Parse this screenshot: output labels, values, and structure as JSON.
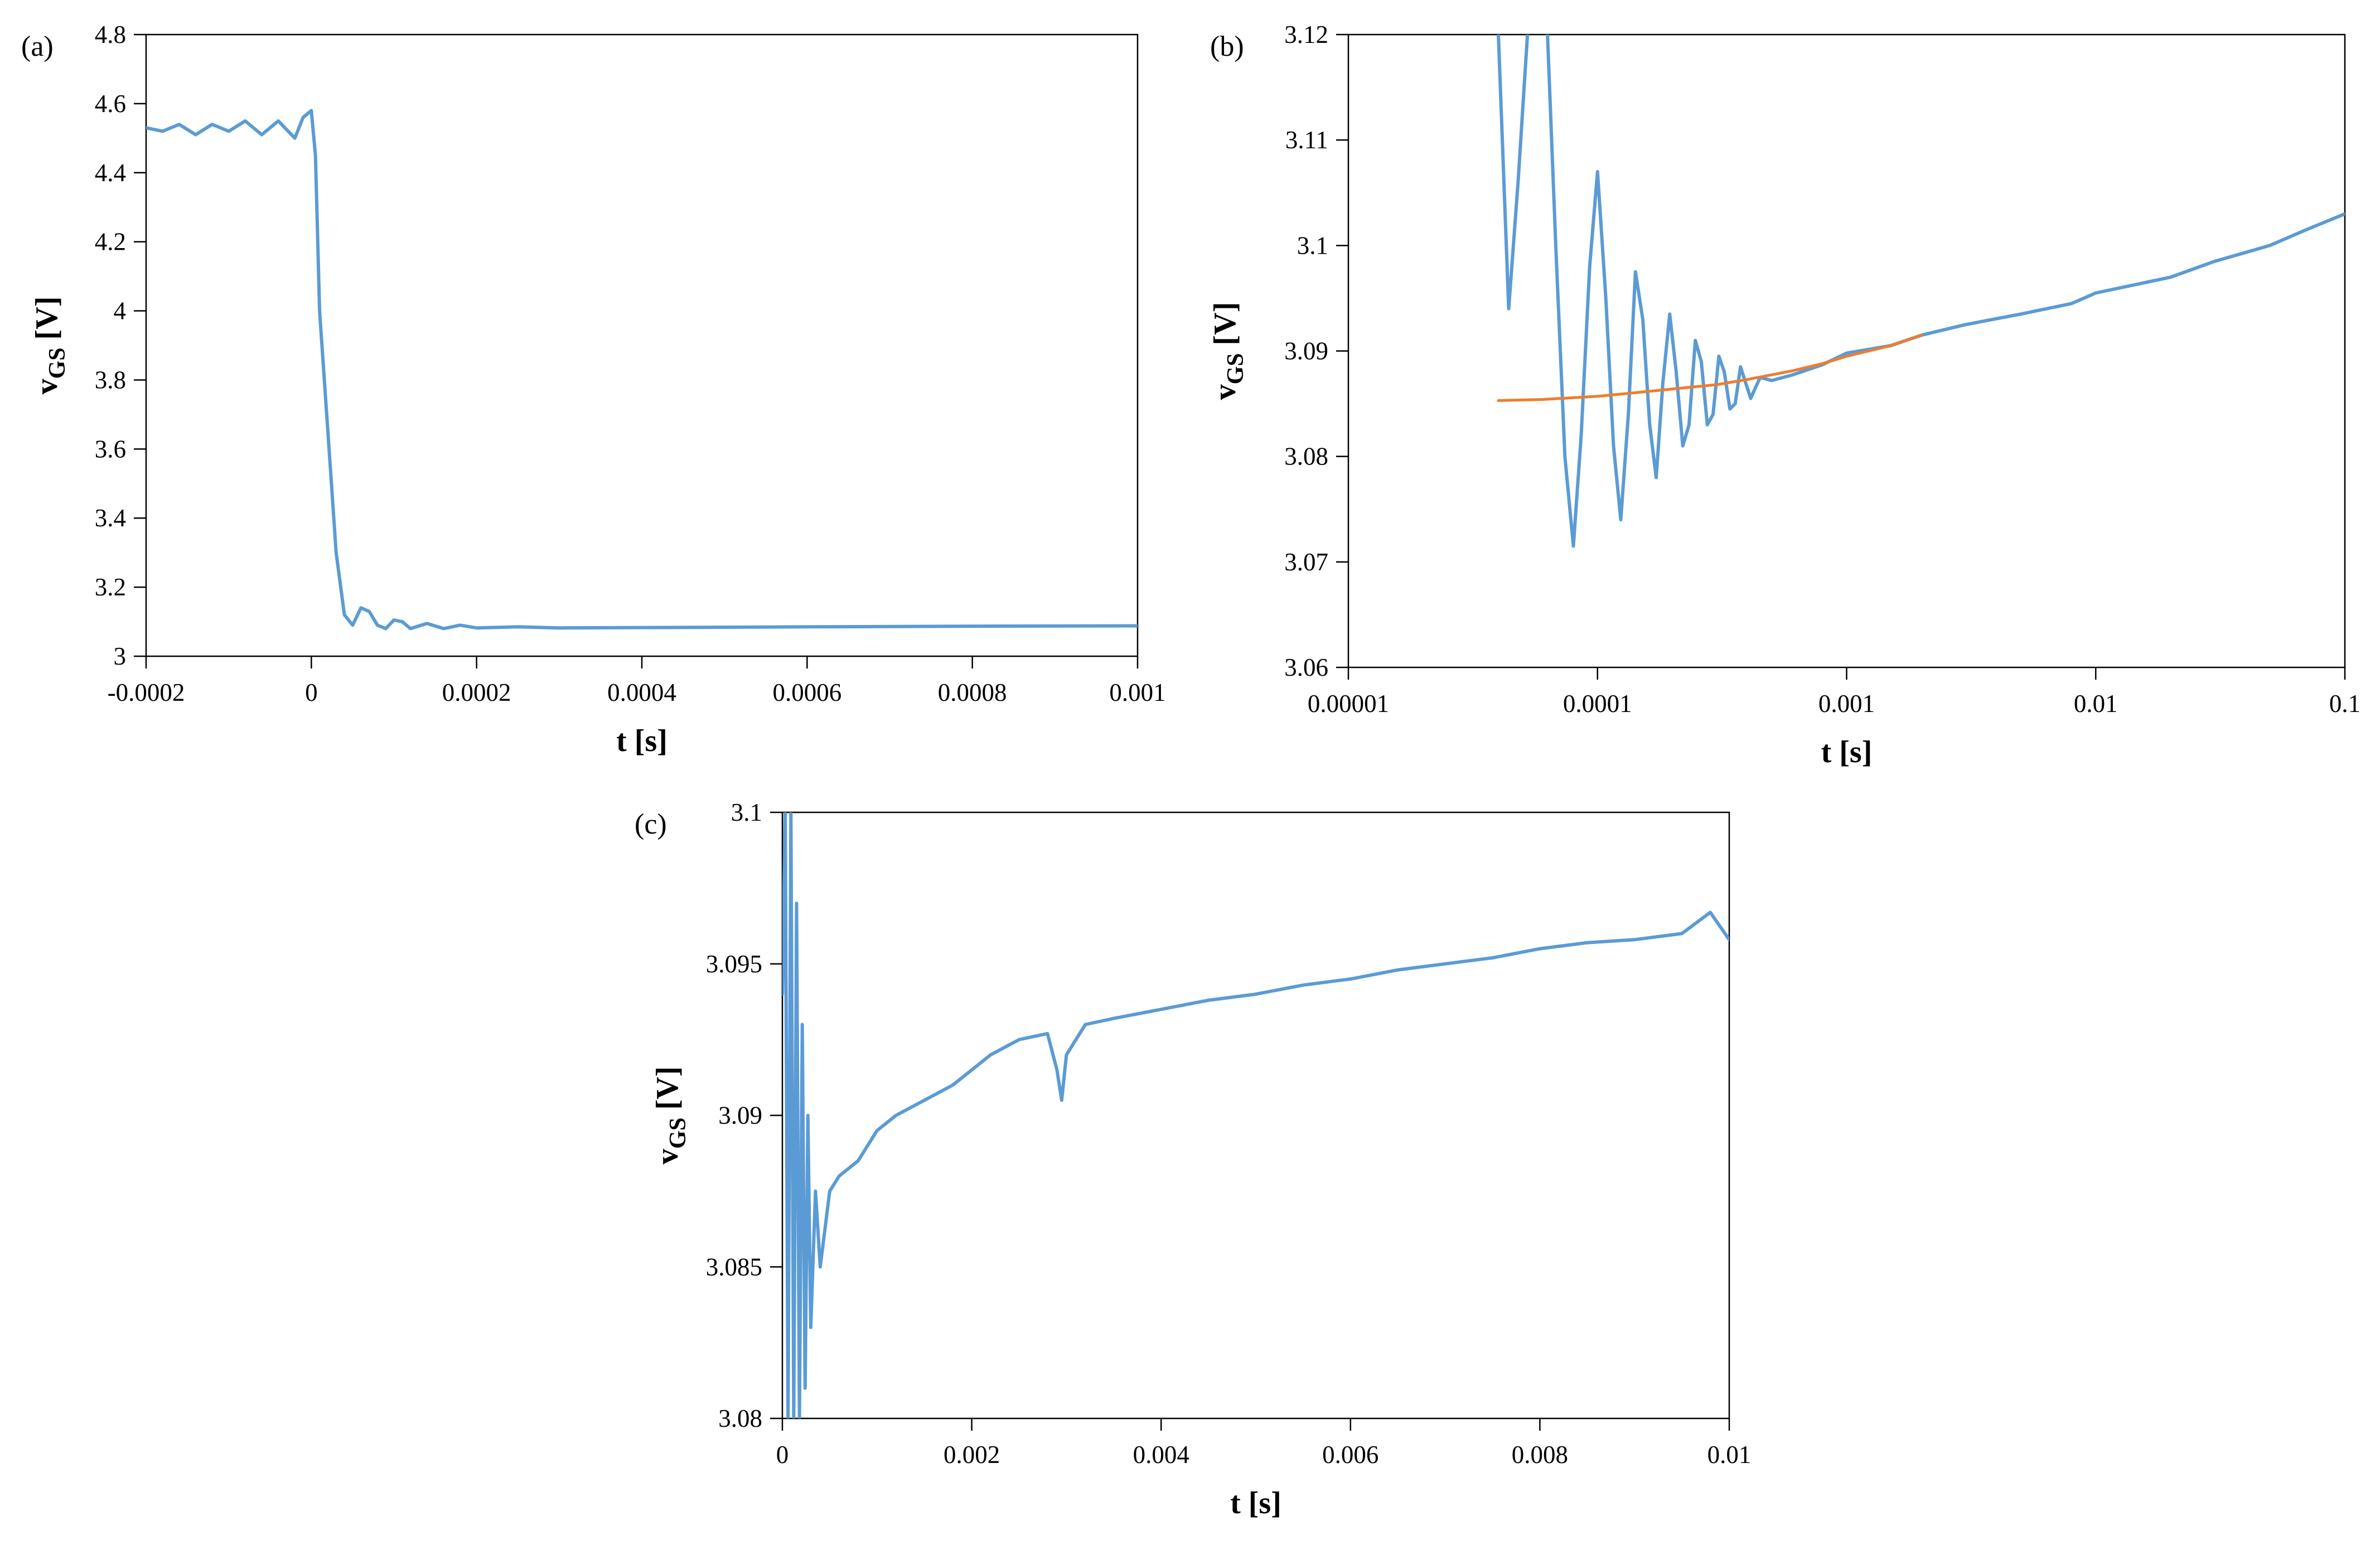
{
  "chart_data": [
    {
      "panel": "(a)",
      "type": "line",
      "xlabel": "t [s]",
      "ylabel_main": "v",
      "ylabel_sub": "GS",
      "ylabel_unit": " [V]",
      "xscale": "linear",
      "xlim": [
        -0.0002,
        0.001
      ],
      "ylim": [
        3,
        4.8
      ],
      "xticks": [
        -0.0002,
        0,
        0.0002,
        0.0004,
        0.0006,
        0.0008,
        0.001
      ],
      "xtick_labels": [
        "-0.0002",
        "0",
        "0.0002",
        "0.0004",
        "0.0006",
        "0.0008",
        "0.001"
      ],
      "yticks": [
        3,
        3.2,
        3.4,
        3.6,
        3.8,
        4,
        4.2,
        4.4,
        4.6,
        4.8
      ],
      "ytick_labels": [
        "3",
        "3.2",
        "3.4",
        "3.6",
        "3.8",
        "4",
        "4.2",
        "4.4",
        "4.6",
        "4.8"
      ],
      "grid": false,
      "series": [
        {
          "color": "#5b9bd5",
          "x": [
            -0.0002,
            -0.00018,
            -0.00016,
            -0.00014,
            -0.00012,
            -0.0001,
            -8e-05,
            -6e-05,
            -4e-05,
            -2e-05,
            -1e-05,
            0,
            5e-06,
            1e-05,
            2e-05,
            3e-05,
            4e-05,
            5e-05,
            6e-05,
            7e-05,
            8e-05,
            9e-05,
            0.0001,
            0.00011,
            0.00012,
            0.00014,
            0.00016,
            0.00018,
            0.0002,
            0.00025,
            0.0003,
            0.0004,
            0.0006,
            0.0008,
            0.001
          ],
          "y": [
            4.53,
            4.52,
            4.54,
            4.51,
            4.54,
            4.52,
            4.55,
            4.51,
            4.55,
            4.5,
            4.56,
            4.58,
            4.45,
            4.0,
            3.65,
            3.3,
            3.12,
            3.09,
            3.14,
            3.13,
            3.09,
            3.08,
            3.105,
            3.1,
            3.08,
            3.095,
            3.08,
            3.09,
            3.082,
            3.085,
            3.082,
            3.083,
            3.085,
            3.087,
            3.088
          ]
        }
      ]
    },
    {
      "panel": "(b)",
      "type": "line",
      "xlabel": "t [s]",
      "ylabel_main": "v",
      "ylabel_sub": "GS",
      "ylabel_unit": " [V]",
      "xscale": "log",
      "xlim": [
        1e-05,
        0.1
      ],
      "ylim": [
        3.06,
        3.12
      ],
      "xticks": [
        1e-05,
        0.0001,
        0.001,
        0.01,
        0.1
      ],
      "xtick_labels": [
        "0.00001",
        "0.0001",
        "0.001",
        "0.01",
        "0.1"
      ],
      "yticks": [
        3.06,
        3.07,
        3.08,
        3.09,
        3.1,
        3.11,
        3.12
      ],
      "ytick_labels": [
        "3.06",
        "3.07",
        "3.08",
        "3.09",
        "3.1",
        "3.11",
        "3.12"
      ],
      "grid": false,
      "series": [
        {
          "color": "#5b9bd5",
          "x": [
            4e-05,
            4.4e-05,
            4.8e-05,
            5.3e-05,
            5.8e-05,
            6.3e-05,
            6.8e-05,
            7.4e-05,
            8e-05,
            8.6e-05,
            9.3e-05,
            0.0001,
            0.000108,
            0.000116,
            0.000124,
            0.000133,
            0.000142,
            0.000152,
            0.000162,
            0.000172,
            0.000183,
            0.000195,
            0.000207,
            0.00022,
            0.000233,
            0.000247,
            0.000261,
            0.000276,
            0.000291,
            0.000307,
            0.000323,
            0.00034,
            0.000357,
            0.000375,
            0.000393,
            0.000412,
            0.00043,
            0.00045,
            0.0005,
            0.0006,
            0.0008,
            0.001,
            0.0015,
            0.002,
            0.003,
            0.005,
            0.008,
            0.01,
            0.02,
            0.03,
            0.05,
            0.07,
            0.1
          ],
          "y": [
            3.12,
            3.094,
            3.106,
            3.122,
            3.121,
            3.12,
            3.1,
            3.08,
            3.0715,
            3.082,
            3.098,
            3.107,
            3.095,
            3.081,
            3.074,
            3.084,
            3.0975,
            3.093,
            3.083,
            3.078,
            3.087,
            3.0935,
            3.088,
            3.081,
            3.083,
            3.091,
            3.089,
            3.083,
            3.084,
            3.0895,
            3.088,
            3.0845,
            3.085,
            3.0885,
            3.087,
            3.0855,
            3.0865,
            3.0875,
            3.0872,
            3.0877,
            3.0887,
            3.0898,
            3.0905,
            3.0915,
            3.0925,
            3.0935,
            3.0945,
            3.0955,
            3.097,
            3.0985,
            3.1,
            3.1015,
            3.103
          ]
        },
        {
          "color": "#ed7d31",
          "x": [
            4e-05,
            6e-05,
            0.0001,
            0.00015,
            0.0002,
            0.0003,
            0.0004,
            0.0006,
            0.0008,
            0.001,
            0.0015,
            0.002
          ],
          "y": [
            3.0853,
            3.0854,
            3.0857,
            3.0861,
            3.0864,
            3.0868,
            3.0873,
            3.0881,
            3.0888,
            3.0895,
            3.0905,
            3.0915
          ]
        }
      ]
    },
    {
      "panel": "(c)",
      "type": "line",
      "xlabel": "t [s]",
      "ylabel_main": "v",
      "ylabel_sub": "GS",
      "ylabel_unit": " [V]",
      "xscale": "linear",
      "xlim": [
        0,
        0.01
      ],
      "ylim": [
        3.08,
        3.1
      ],
      "xticks": [
        0,
        0.002,
        0.004,
        0.006,
        0.008,
        0.01
      ],
      "xtick_labels": [
        "0",
        "0.002",
        "0.004",
        "0.006",
        "0.008",
        "0.01"
      ],
      "yticks": [
        3.08,
        3.085,
        3.09,
        3.095,
        3.1
      ],
      "ytick_labels": [
        "3.08",
        "3.085",
        "3.09",
        "3.095",
        "3.1"
      ],
      "grid": false,
      "series": [
        {
          "color": "#5b9bd5",
          "x": [
            0,
            3e-05,
            6e-05,
            9e-05,
            0.00012,
            0.00015,
            0.00018,
            0.00021,
            0.00024,
            0.00027,
            0.0003,
            0.00035,
            0.0004,
            0.0005,
            0.0006,
            0.0008,
            0.001,
            0.0012,
            0.0015,
            0.0018,
            0.002,
            0.0022,
            0.0025,
            0.0028,
            0.0029,
            0.00295,
            0.003,
            0.0032,
            0.0035,
            0.004,
            0.0045,
            0.005,
            0.0055,
            0.006,
            0.0065,
            0.007,
            0.0075,
            0.008,
            0.0085,
            0.009,
            0.0095,
            0.0098,
            0.01
          ],
          "y": [
            3.094,
            3.1,
            3.08,
            3.1,
            3.08,
            3.097,
            3.08,
            3.093,
            3.081,
            3.09,
            3.083,
            3.0875,
            3.085,
            3.0875,
            3.088,
            3.0885,
            3.0895,
            3.09,
            3.0905,
            3.091,
            3.0915,
            3.092,
            3.0925,
            3.0927,
            3.0915,
            3.0905,
            3.092,
            3.093,
            3.0932,
            3.0935,
            3.0938,
            3.094,
            3.0943,
            3.0945,
            3.0948,
            3.095,
            3.0952,
            3.0955,
            3.0957,
            3.0958,
            3.096,
            3.0967,
            3.0958
          ]
        }
      ]
    }
  ]
}
